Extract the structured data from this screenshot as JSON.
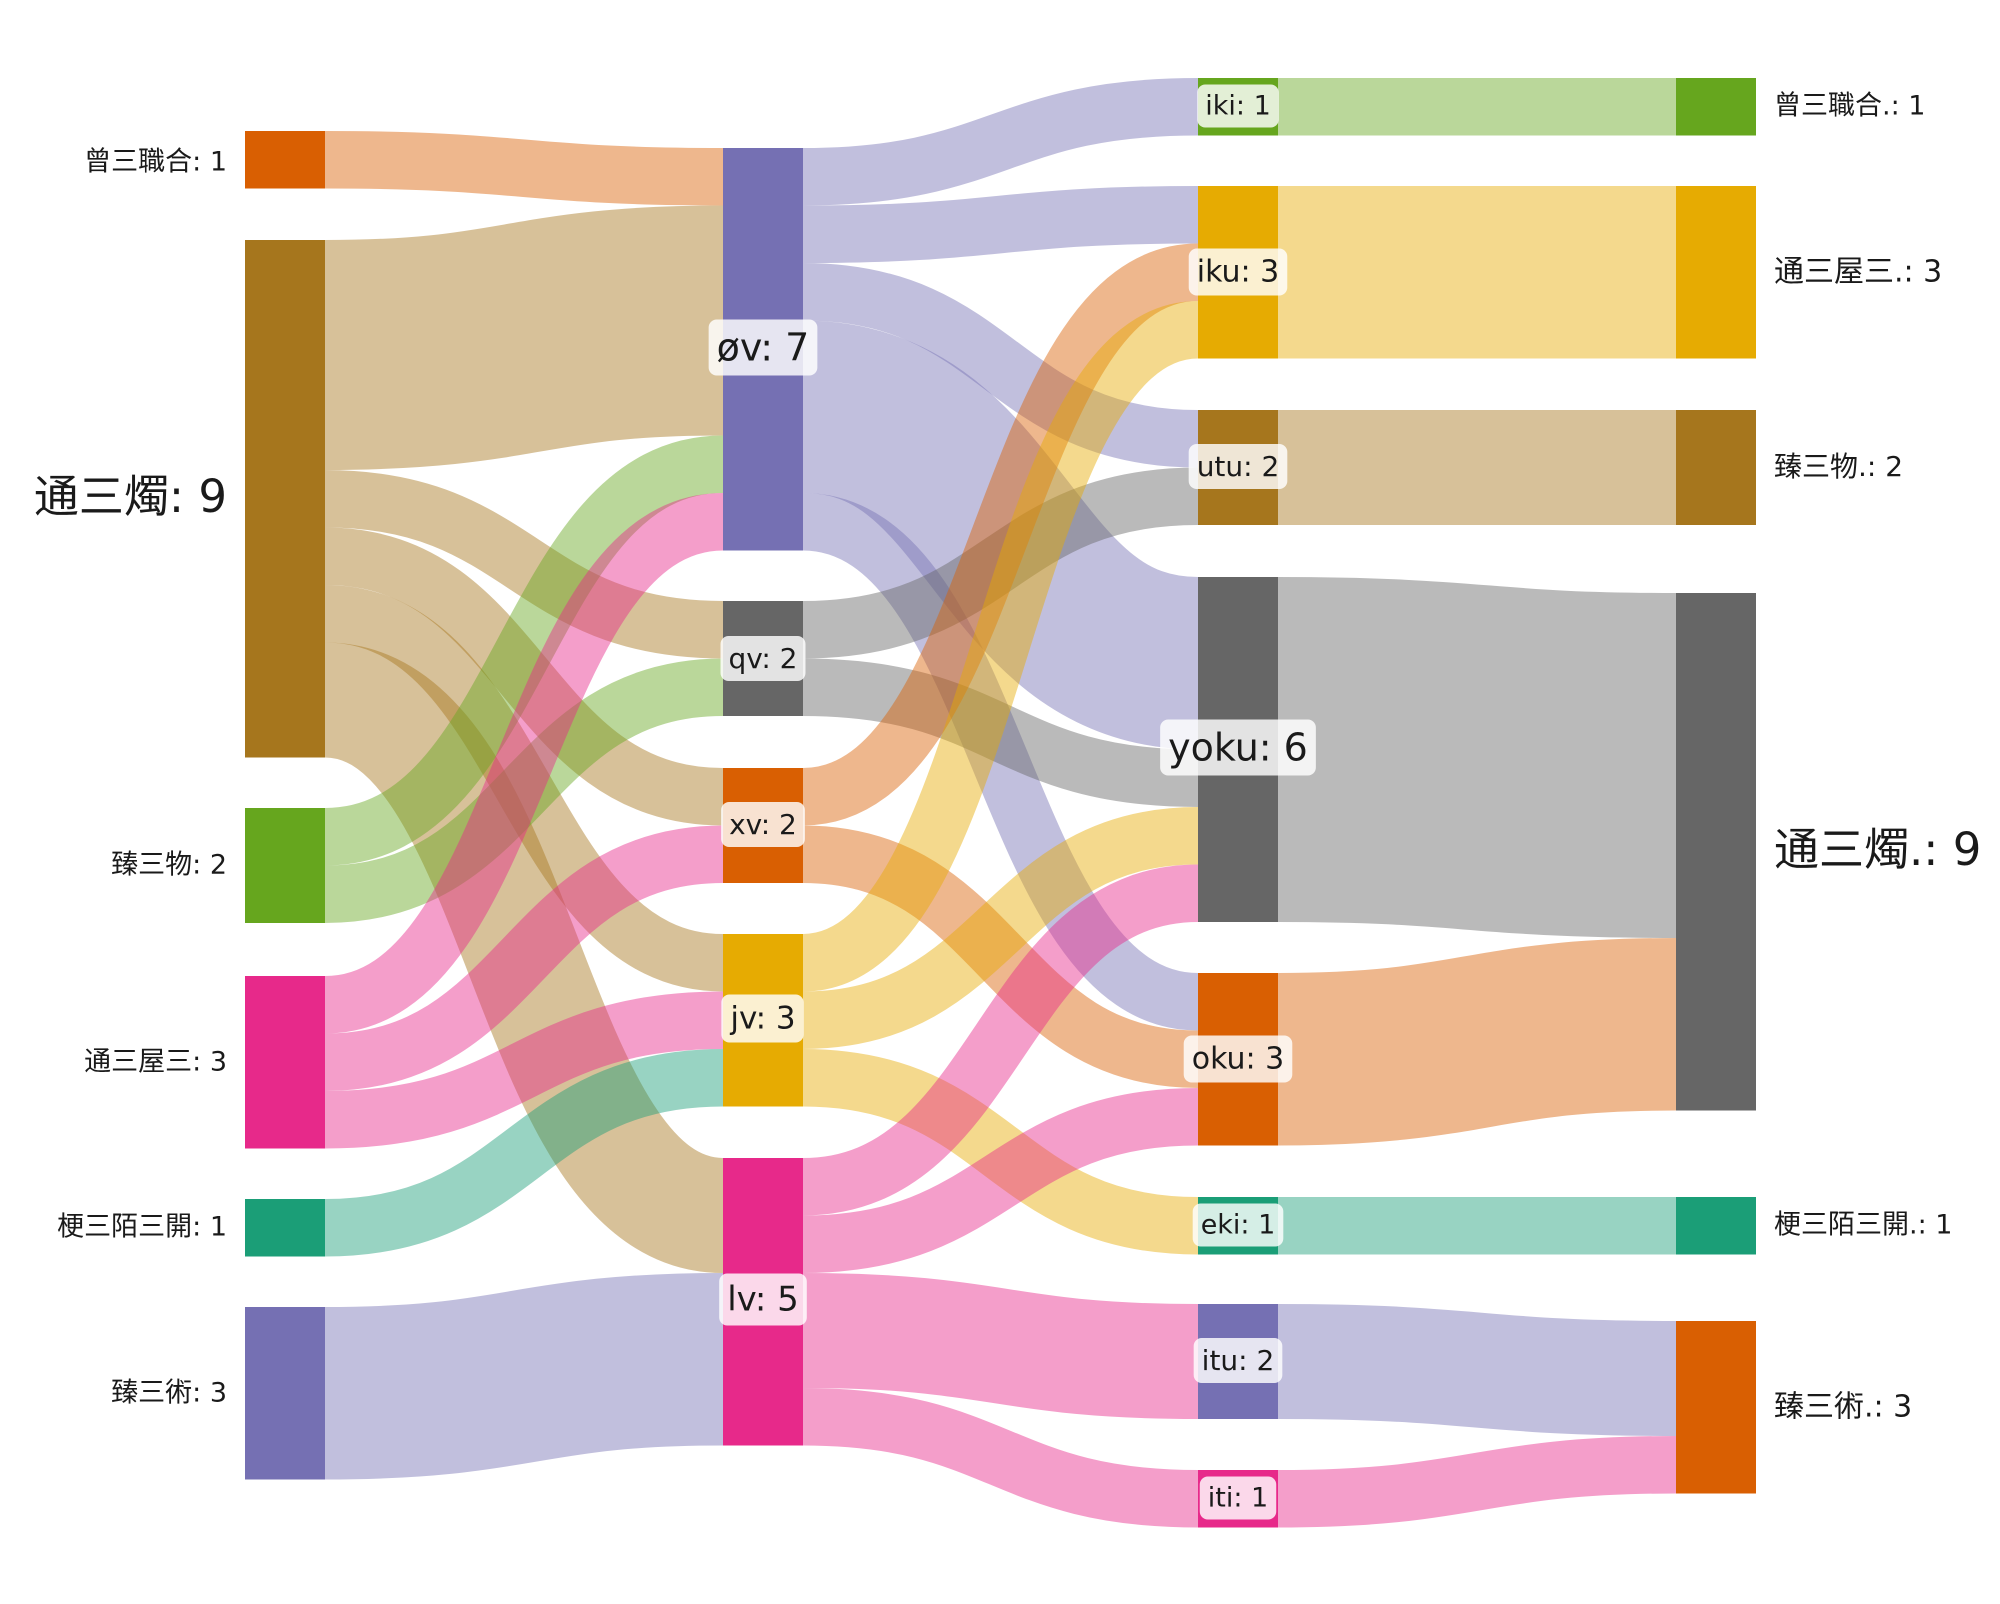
{
  "chart_data": {
    "type": "sankey",
    "colors": {
      "orange": "#d95f02",
      "brown": "#a6761d",
      "green": "#66a61e",
      "pink": "#e7298a",
      "teal": "#1b9e77",
      "purple": "#7570b3",
      "gray": "#666666",
      "gold": "#e6ab02"
    },
    "nodes": [
      {
        "id": "s1",
        "name": "曾三職合",
        "value": 1,
        "label": "曾三職合: 1",
        "color": "orange",
        "column": 0
      },
      {
        "id": "s2",
        "name": "通三燭",
        "value": 9,
        "label": "通三燭: 9",
        "color": "brown",
        "column": 0
      },
      {
        "id": "s3",
        "name": "臻三物",
        "value": 2,
        "label": "臻三物: 2",
        "color": "green",
        "column": 0
      },
      {
        "id": "s4",
        "name": "通三屋三",
        "value": 3,
        "label": "通三屋三: 3",
        "color": "pink",
        "column": 0
      },
      {
        "id": "s5",
        "name": "梗三陌三開",
        "value": 1,
        "label": "梗三陌三開: 1",
        "color": "teal",
        "column": 0
      },
      {
        "id": "s6",
        "name": "臻三術",
        "value": 3,
        "label": "臻三術: 3",
        "color": "purple",
        "column": 0
      },
      {
        "id": "m1",
        "name": "øv",
        "value": 7,
        "label": "øv: 7",
        "color": "purple",
        "column": 1
      },
      {
        "id": "m2",
        "name": "qv",
        "value": 2,
        "label": "qv: 2",
        "color": "gray",
        "column": 1
      },
      {
        "id": "m3",
        "name": "xv",
        "value": 2,
        "label": "xv: 2",
        "color": "orange",
        "column": 1
      },
      {
        "id": "m4",
        "name": "jv",
        "value": 3,
        "label": "jv: 3",
        "color": "gold",
        "column": 1
      },
      {
        "id": "m5",
        "name": "lv",
        "value": 5,
        "label": "lv: 5",
        "color": "pink",
        "column": 1
      },
      {
        "id": "r1",
        "name": "iki",
        "value": 1,
        "label": "iki: 1",
        "color": "green",
        "column": 2
      },
      {
        "id": "r2",
        "name": "iku",
        "value": 3,
        "label": "iku: 3",
        "color": "gold",
        "column": 2
      },
      {
        "id": "r3",
        "name": "utu",
        "value": 2,
        "label": "utu: 2",
        "color": "brown",
        "column": 2
      },
      {
        "id": "r4",
        "name": "yoku",
        "value": 6,
        "label": "yoku: 6",
        "color": "gray",
        "column": 2
      },
      {
        "id": "r5",
        "name": "oku",
        "value": 3,
        "label": "oku: 3",
        "color": "orange",
        "column": 2
      },
      {
        "id": "r6",
        "name": "eki",
        "value": 1,
        "label": "eki: 1",
        "color": "teal",
        "column": 2
      },
      {
        "id": "r7",
        "name": "itu",
        "value": 2,
        "label": "itu: 2",
        "color": "purple",
        "column": 2
      },
      {
        "id": "r8",
        "name": "iti",
        "value": 1,
        "label": "iti: 1",
        "color": "pink",
        "column": 2
      },
      {
        "id": "t1",
        "name": "曾三職合.",
        "value": 1,
        "label": "曾三職合.: 1",
        "color": "green",
        "column": 3
      },
      {
        "id": "t2",
        "name": "通三屋三.",
        "value": 3,
        "label": "通三屋三.: 3",
        "color": "gold",
        "column": 3
      },
      {
        "id": "t3",
        "name": "臻三物.",
        "value": 2,
        "label": "臻三物.: 2",
        "color": "brown",
        "column": 3
      },
      {
        "id": "t4",
        "name": "通三燭.",
        "value": 9,
        "label": "通三燭.: 9",
        "color": "gray",
        "column": 3
      },
      {
        "id": "t5",
        "name": "梗三陌三開.",
        "value": 1,
        "label": "梗三陌三開.: 1",
        "color": "teal",
        "column": 3
      },
      {
        "id": "t6",
        "name": "臻三術.",
        "value": 3,
        "label": "臻三術.: 3",
        "color": "orange",
        "column": 3
      }
    ],
    "links": [
      {
        "source": "s1",
        "target": "m1",
        "value": 1
      },
      {
        "source": "s2",
        "target": "m1",
        "value": 4
      },
      {
        "source": "s2",
        "target": "m2",
        "value": 1
      },
      {
        "source": "s2",
        "target": "m3",
        "value": 1
      },
      {
        "source": "s2",
        "target": "m4",
        "value": 1
      },
      {
        "source": "s2",
        "target": "m5",
        "value": 2
      },
      {
        "source": "s3",
        "target": "m1",
        "value": 1
      },
      {
        "source": "s3",
        "target": "m2",
        "value": 1
      },
      {
        "source": "s4",
        "target": "m1",
        "value": 1
      },
      {
        "source": "s4",
        "target": "m3",
        "value": 1
      },
      {
        "source": "s4",
        "target": "m4",
        "value": 1
      },
      {
        "source": "s5",
        "target": "m4",
        "value": 1
      },
      {
        "source": "s6",
        "target": "m5",
        "value": 3
      },
      {
        "source": "m1",
        "target": "r1",
        "value": 1
      },
      {
        "source": "m1",
        "target": "r2",
        "value": 1
      },
      {
        "source": "m1",
        "target": "r3",
        "value": 1
      },
      {
        "source": "m1",
        "target": "r4",
        "value": 3
      },
      {
        "source": "m1",
        "target": "r5",
        "value": 1
      },
      {
        "source": "m2",
        "target": "r3",
        "value": 1
      },
      {
        "source": "m2",
        "target": "r4",
        "value": 1
      },
      {
        "source": "m3",
        "target": "r2",
        "value": 1
      },
      {
        "source": "m3",
        "target": "r5",
        "value": 1
      },
      {
        "source": "m4",
        "target": "r2",
        "value": 1
      },
      {
        "source": "m4",
        "target": "r4",
        "value": 1
      },
      {
        "source": "m4",
        "target": "r6",
        "value": 1
      },
      {
        "source": "m5",
        "target": "r4",
        "value": 1
      },
      {
        "source": "m5",
        "target": "r5",
        "value": 1
      },
      {
        "source": "m5",
        "target": "r7",
        "value": 2
      },
      {
        "source": "m5",
        "target": "r8",
        "value": 1
      },
      {
        "source": "r1",
        "target": "t1",
        "value": 1
      },
      {
        "source": "r2",
        "target": "t2",
        "value": 3
      },
      {
        "source": "r3",
        "target": "t3",
        "value": 2
      },
      {
        "source": "r4",
        "target": "t4",
        "value": 6
      },
      {
        "source": "r5",
        "target": "t4",
        "value": 3
      },
      {
        "source": "r6",
        "target": "t5",
        "value": 1
      },
      {
        "source": "r7",
        "target": "t6",
        "value": 2
      },
      {
        "source": "r8",
        "target": "t6",
        "value": 1
      }
    ]
  }
}
